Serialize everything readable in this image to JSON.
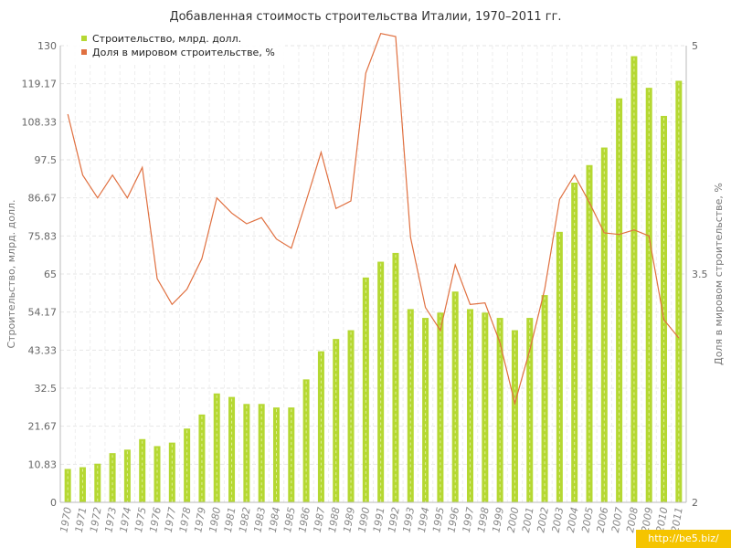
{
  "chart_data": {
    "type": "bar",
    "title": "Добавленная стоимость строительства Италии, 1970–2011 гг.",
    "ylabel": "Строительство, млрд. долл.",
    "y2label": "Доля в мировом строительстве, %",
    "ylim": [
      0,
      130
    ],
    "y2lim": [
      2,
      5
    ],
    "yticks": [
      "0",
      "10.83",
      "21.67",
      "32.5",
      "43.33",
      "54.17",
      "65",
      "75.83",
      "86.67",
      "97.5",
      "108.33",
      "119.17",
      "130"
    ],
    "y2ticks": [
      "2",
      "3.5",
      "5"
    ],
    "grid": true,
    "legend_position": "top-left",
    "categories": [
      "1970",
      "1971",
      "1972",
      "1973",
      "1974",
      "1975",
      "1976",
      "1977",
      "1978",
      "1979",
      "1980",
      "1981",
      "1982",
      "1983",
      "1984",
      "1985",
      "1986",
      "1987",
      "1988",
      "1989",
      "1990",
      "1991",
      "1992",
      "1993",
      "1994",
      "1995",
      "1996",
      "1997",
      "1998",
      "1999",
      "2000",
      "2001",
      "2002",
      "2003",
      "2004",
      "2005",
      "2006",
      "2007",
      "2008",
      "2009",
      "2010",
      "2011"
    ],
    "series": [
      {
        "name": "Строительство, млрд. долл.",
        "kind": "bar",
        "axis": "left",
        "color": "#b5d832",
        "values": [
          9.5,
          10,
          11,
          14,
          15,
          18,
          16,
          17,
          21,
          25,
          31,
          30,
          28,
          28,
          27,
          27,
          35,
          43,
          46.5,
          49,
          64,
          68.5,
          71,
          55,
          52.5,
          54,
          60,
          55,
          54,
          52.5,
          49,
          52.5,
          59,
          77,
          91,
          96,
          101,
          115,
          127,
          118,
          110,
          120
        ]
      },
      {
        "name": "Доля в мировом строительстве, %",
        "kind": "line",
        "axis": "right",
        "color": "#e07040",
        "values": [
          4.55,
          4.15,
          4.0,
          4.15,
          4.0,
          4.2,
          3.47,
          3.3,
          3.4,
          3.6,
          4.0,
          3.9,
          3.83,
          3.87,
          3.73,
          3.67,
          3.98,
          4.3,
          3.93,
          3.98,
          4.82,
          5.08,
          5.06,
          3.74,
          3.28,
          3.13,
          3.56,
          3.3,
          3.31,
          3.05,
          2.65,
          3.0,
          3.4,
          3.99,
          4.15,
          3.97,
          3.77,
          3.76,
          3.79,
          3.75,
          3.2,
          3.08
        ]
      }
    ]
  },
  "watermark": "http://be5.biz/"
}
